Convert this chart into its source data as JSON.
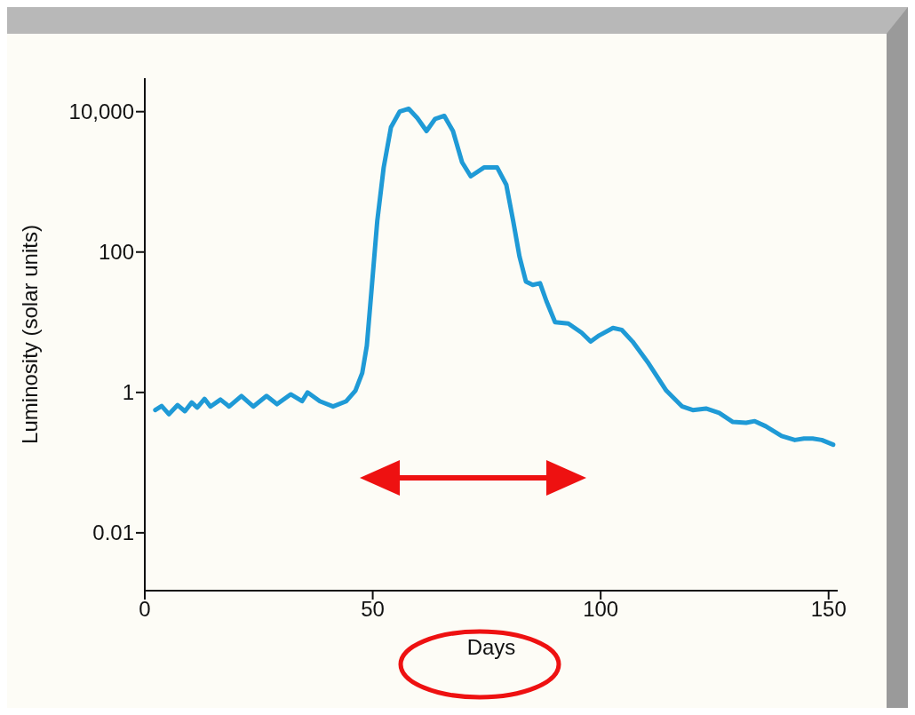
{
  "chart_data": {
    "type": "line",
    "xlabel": "Days",
    "ylabel": "Luminosity (solar units)",
    "log": "y",
    "grid": false,
    "legend": false,
    "marker": "none",
    "line_style": "solid",
    "xlim": [
      0,
      152
    ],
    "xticks": [
      0,
      50,
      100,
      150
    ],
    "ylim": [
      0.0015,
      30000
    ],
    "yticks": [
      {
        "value": 10000,
        "label": "10,000"
      },
      100,
      1,
      0.01
    ],
    "series": [
      {
        "color": "#1f9ad6",
        "x": [
          2.3,
          3.7,
          5.3,
          7.2,
          8.8,
          10.3,
          11.5,
          13.1,
          14.4,
          16.6,
          18.5,
          21.2,
          23.8,
          26.7,
          29.0,
          32.0,
          34.5,
          35.7,
          38.4,
          41.3,
          44.2,
          46.2,
          47.7,
          48.7,
          49.7,
          51.0,
          52.4,
          54.0,
          55.9,
          57.9,
          59.8,
          61.8,
          63.7,
          65.7,
          67.6,
          69.6,
          71.5,
          74.4,
          77.3,
          79.3,
          80.8,
          82.2,
          83.6,
          85.1,
          86.7,
          88.1,
          90.0,
          92.9,
          95.8,
          97.8,
          99.7,
          102.7,
          104.6,
          107.0,
          110.5,
          114.4,
          117.9,
          120.2,
          123.1,
          126.0,
          129.0,
          131.9,
          133.8,
          136.2,
          139.7,
          142.6,
          144.6,
          146.5,
          148.5,
          151.0
        ],
        "values": [
          0.56,
          0.64,
          0.49,
          0.66,
          0.54,
          0.72,
          0.61,
          0.81,
          0.63,
          0.79,
          0.63,
          0.89,
          0.63,
          0.89,
          0.68,
          0.94,
          0.75,
          1.0,
          0.75,
          0.63,
          0.75,
          1.06,
          1.9,
          4.6,
          27,
          280,
          1600,
          6000,
          10000,
          11000,
          8100,
          5300,
          7900,
          8700,
          5300,
          1900,
          1200,
          1600,
          1600,
          910,
          280,
          86,
          38,
          34,
          36,
          20,
          10,
          9.6,
          7.1,
          5.3,
          6.5,
          8.3,
          7.8,
          5.3,
          2.6,
          1.06,
          0.63,
          0.56,
          0.59,
          0.51,
          0.38,
          0.37,
          0.39,
          0.33,
          0.24,
          0.21,
          0.22,
          0.22,
          0.21,
          0.18
        ]
      }
    ]
  }
}
